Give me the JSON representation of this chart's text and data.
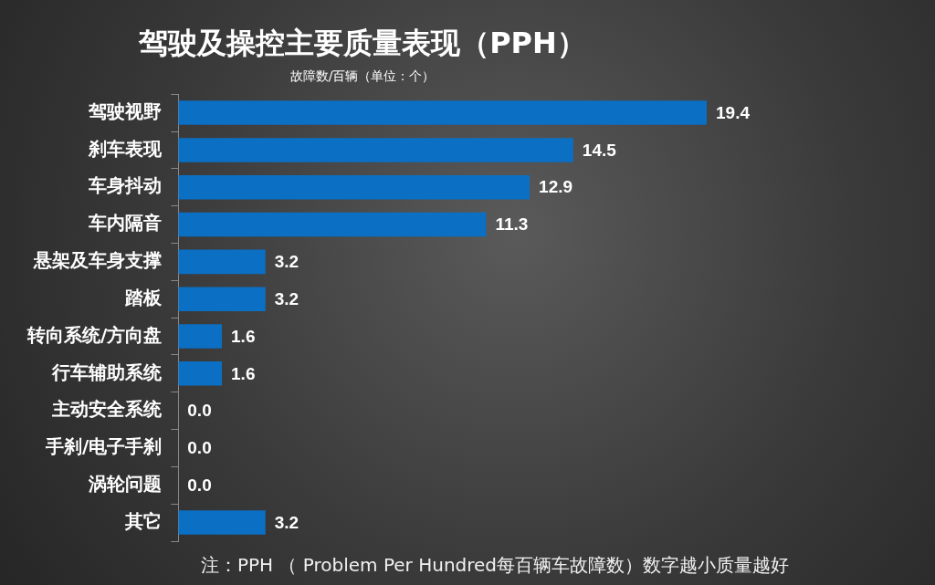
{
  "chart_data": {
    "type": "bar",
    "orientation": "horizontal",
    "title": "驾驶及操控主要质量表现（PPH）",
    "subtitle": "故障数/百辆（单位：个）",
    "categories": [
      "驾驶视野",
      "刹车表现",
      "车身抖动",
      "车内隔音",
      "悬架及车身支撑",
      "踏板",
      "转向系统/方向盘",
      "行车辅助系统",
      "主动安全系统",
      "手刹/电子手刹",
      "涡轮问题",
      "其它"
    ],
    "values": [
      19.4,
      14.5,
      12.9,
      11.3,
      3.2,
      3.2,
      1.6,
      1.6,
      0.0,
      0.0,
      0.0,
      3.2
    ],
    "value_labels": [
      "19.4",
      "14.5",
      "12.9",
      "11.3",
      "3.2",
      "3.2",
      "1.6",
      "1.6",
      "0.0",
      "0.0",
      "0.0",
      "3.2"
    ],
    "color": "#0b6fc3",
    "legend": false,
    "tick_labels": "y",
    "annotations": [
      "注：PPH （ Problem Per Hundred每百辆车故障数）数字越小质量越好"
    ]
  }
}
